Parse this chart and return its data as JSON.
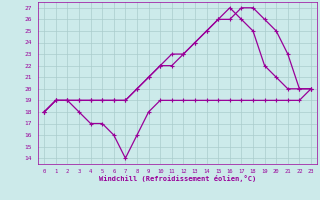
{
  "xlabel": "Windchill (Refroidissement éolien,°C)",
  "bg_color": "#cceaea",
  "line_color": "#990099",
  "grid_color": "#aacccc",
  "xlim": [
    -0.5,
    23.5
  ],
  "ylim": [
    13.5,
    27.5
  ],
  "xticks": [
    0,
    1,
    2,
    3,
    4,
    5,
    6,
    7,
    8,
    9,
    10,
    11,
    12,
    13,
    14,
    15,
    16,
    17,
    18,
    19,
    20,
    21,
    22,
    23
  ],
  "yticks": [
    14,
    15,
    16,
    17,
    18,
    19,
    20,
    21,
    22,
    23,
    24,
    25,
    26,
    27
  ],
  "series": [
    {
      "x": [
        0,
        1,
        2,
        3,
        4,
        5,
        6,
        7,
        8,
        9,
        10,
        11,
        12,
        13,
        14,
        15,
        16,
        17,
        18,
        19,
        20,
        21,
        22,
        23
      ],
      "y": [
        18,
        19,
        19,
        19,
        19,
        19,
        19,
        19,
        20,
        21,
        22,
        23,
        23,
        24,
        25,
        26,
        26,
        27,
        27,
        26,
        25,
        23,
        20,
        20
      ]
    },
    {
      "x": [
        0,
        1,
        2,
        3,
        4,
        5,
        6,
        7,
        8,
        9,
        10,
        11,
        12,
        13,
        14,
        15,
        16,
        17,
        18,
        19,
        20,
        21,
        22,
        23
      ],
      "y": [
        18,
        19,
        19,
        19,
        19,
        19,
        19,
        19,
        20,
        21,
        22,
        22,
        23,
        24,
        25,
        26,
        27,
        26,
        25,
        22,
        21,
        20,
        20,
        20
      ]
    },
    {
      "x": [
        0,
        1,
        2,
        3,
        4,
        5,
        6,
        7,
        8,
        9,
        10,
        11,
        12,
        13,
        14,
        15,
        16,
        17,
        18,
        19,
        20,
        21,
        22,
        23
      ],
      "y": [
        18,
        19,
        19,
        18,
        17,
        17,
        16,
        14,
        16,
        18,
        19,
        19,
        19,
        19,
        19,
        19,
        19,
        19,
        19,
        19,
        19,
        19,
        19,
        20
      ]
    }
  ]
}
